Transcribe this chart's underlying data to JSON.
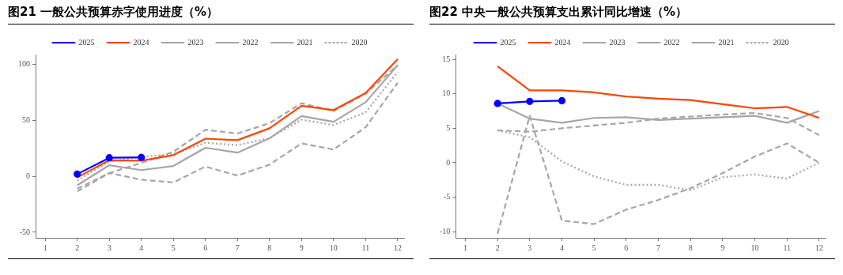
{
  "chart_data": [
    {
      "type": "line",
      "title": "图21 一般公共预算赤字使用进度（%）",
      "x": [
        2,
        3,
        4,
        5,
        6,
        7,
        8,
        9,
        10,
        11,
        12
      ],
      "xlim": [
        0.7,
        12.2
      ],
      "xticks": [
        1,
        2,
        3,
        4,
        5,
        6,
        7,
        8,
        9,
        10,
        11,
        12
      ],
      "ylim": [
        -55,
        109
      ],
      "yticks": [
        -50,
        0,
        50,
        100
      ],
      "grid": false,
      "legend": "top",
      "series": [
        {
          "name": "2025",
          "color": "#0000ff",
          "marker": "circle",
          "line_style": "solid",
          "values": [
            2,
            16.6,
            17,
            null,
            null,
            null,
            null,
            null,
            null,
            null,
            null
          ]
        },
        {
          "name": "2024",
          "color": "#ff4500",
          "line_style": "solid",
          "values": [
            -1,
            14.4,
            14,
            19,
            33.7,
            32.4,
            43,
            63.2,
            59.3,
            74.6,
            105
          ]
        },
        {
          "name": "2023",
          "color": "#a6a6a6",
          "line_style": "solid",
          "values": [
            -8,
            10,
            5.6,
            9.3,
            25.6,
            21.2,
            34,
            54,
            48.8,
            66.3,
            99.5
          ]
        },
        {
          "name": "2022",
          "color": "#a6a6a6",
          "line_style": "dashed",
          "values": [
            -11,
            3,
            12,
            22,
            41.7,
            38.3,
            47.6,
            65.4,
            58.5,
            74,
            99.5
          ]
        },
        {
          "name": "2021",
          "color": "#a6a6a6",
          "line_style": "dashed",
          "values": [
            -13.4,
            3,
            -3,
            -5.4,
            8.8,
            0.7,
            10.5,
            29.5,
            24,
            44,
            83.7
          ]
        },
        {
          "name": "2020",
          "color": "#a6a6a6",
          "line_style": "dotted",
          "values": [
            -3.7,
            13.4,
            17.3,
            20,
            30,
            28,
            34.1,
            50.7,
            45.9,
            57.3,
            93.4
          ]
        }
      ]
    },
    {
      "type": "line",
      "title": "图22 中央一般公共预算支出累计同比增速（%）",
      "x": [
        2,
        3,
        4,
        5,
        6,
        7,
        8,
        9,
        10,
        11,
        12
      ],
      "xlim": [
        0.7,
        12.2
      ],
      "xticks": [
        1,
        2,
        3,
        4,
        5,
        6,
        7,
        8,
        9,
        10,
        11,
        12
      ],
      "ylim": [
        -10.9,
        15.7
      ],
      "yticks": [
        -10,
        -5,
        0,
        5,
        10,
        15
      ],
      "grid": false,
      "legend": "top",
      "series": [
        {
          "name": "2025",
          "color": "#0000ff",
          "marker": "circle",
          "line_style": "solid",
          "values": [
            8.6,
            8.9,
            9,
            null,
            null,
            null,
            null,
            null,
            null,
            null,
            null
          ]
        },
        {
          "name": "2024",
          "color": "#ff4500",
          "line_style": "solid",
          "values": [
            14,
            10.5,
            10.5,
            10.2,
            9.6,
            9.3,
            9.1,
            8.5,
            7.9,
            8.1,
            6.5
          ]
        },
        {
          "name": "2023",
          "color": "#a6a6a6",
          "line_style": "solid",
          "values": [
            8.6,
            6.4,
            5.8,
            6.5,
            6.6,
            6.2,
            6.4,
            6.6,
            6.8,
            5.8,
            7.5
          ]
        },
        {
          "name": "2022",
          "color": "#a6a6a6",
          "line_style": "dashed",
          "values": [
            4.7,
            4.5,
            5,
            5.4,
            5.8,
            6.4,
            6.7,
            7,
            7.2,
            6.5,
            4
          ]
        },
        {
          "name": "2021",
          "color": "#a6a6a6",
          "line_style": "dashed",
          "values": [
            -10.3,
            6.8,
            -8.4,
            -8.9,
            -6.8,
            -5.4,
            -3.7,
            -1.5,
            0.9,
            2.8,
            0
          ]
        },
        {
          "name": "2020",
          "color": "#a6a6a6",
          "line_style": "dotted",
          "values": [
            4.7,
            3.7,
            0.2,
            -2,
            -3.2,
            -3.2,
            -4,
            -2.1,
            -1.7,
            -2.3,
            0
          ]
        }
      ]
    }
  ]
}
